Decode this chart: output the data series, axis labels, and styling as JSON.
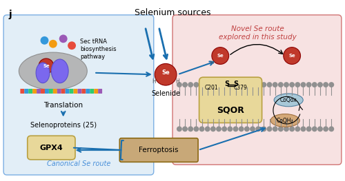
{
  "bg_color": "#f0f0f0",
  "title": "Selenium sources",
  "panel_label": "j",
  "left_box_color": "#d6e8f5",
  "right_box_color": "#f5d6d6",
  "left_box_label": "Canonical Se route",
  "right_box_label": "Novel Se route\nexplored in this study",
  "se_color": "#c0392b",
  "se_label": "Se",
  "selenide_label": "Selenide",
  "translation_label": "Translation",
  "selenoproteins_label": "Selenoproteins (25)",
  "gpx4_label": "GPX4",
  "sqor_label": "SQOR",
  "c201_label": "C201",
  "c379_label": "C379",
  "coqox_label": "CoQox",
  "coqh2_label": "CoQH₂",
  "ferroptosis_label": "Ferroptosis",
  "sec_trna_label": "Sec tRNA\nbiosynthesis\npathway",
  "border_color": "#555555",
  "arrow_blue": "#1a6faf",
  "arrow_dark": "#333333",
  "membrane_color": "#b0b0b0",
  "sqor_box_color": "#e8d89a",
  "gpx4_box_color": "#e8d89a",
  "coqox_box_color": "#a8c8d8",
  "coqh2_box_color": "#d4a878",
  "ferroptosis_color": "#c8a878"
}
